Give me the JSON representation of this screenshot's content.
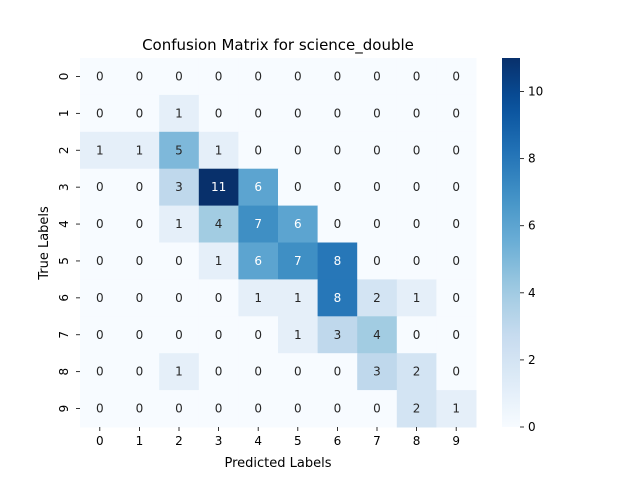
{
  "chart_data": {
    "type": "heatmap",
    "title": "Confusion Matrix for science_double",
    "xlabel": "Predicted Labels",
    "ylabel": "True Labels",
    "x_categories": [
      "0",
      "1",
      "2",
      "3",
      "4",
      "5",
      "6",
      "7",
      "8",
      "9"
    ],
    "y_categories": [
      "0",
      "1",
      "2",
      "3",
      "4",
      "5",
      "6",
      "7",
      "8",
      "9"
    ],
    "values": [
      [
        0,
        0,
        0,
        0,
        0,
        0,
        0,
        0,
        0,
        0
      ],
      [
        0,
        0,
        1,
        0,
        0,
        0,
        0,
        0,
        0,
        0
      ],
      [
        1,
        1,
        5,
        1,
        0,
        0,
        0,
        0,
        0,
        0
      ],
      [
        0,
        0,
        3,
        11,
        6,
        0,
        0,
        0,
        0,
        0
      ],
      [
        0,
        0,
        1,
        4,
        7,
        6,
        0,
        0,
        0,
        0
      ],
      [
        0,
        0,
        0,
        1,
        6,
        7,
        8,
        0,
        0,
        0
      ],
      [
        0,
        0,
        0,
        0,
        1,
        1,
        8,
        2,
        1,
        0
      ],
      [
        0,
        0,
        0,
        0,
        0,
        1,
        3,
        4,
        0,
        0
      ],
      [
        0,
        0,
        1,
        0,
        0,
        0,
        0,
        3,
        2,
        0
      ],
      [
        0,
        0,
        0,
        0,
        0,
        0,
        0,
        0,
        2,
        1
      ]
    ],
    "colorbar": {
      "min": 0,
      "max": 11,
      "ticks": [
        "0",
        "2",
        "4",
        "6",
        "8",
        "10"
      ],
      "colormap": "Blues"
    }
  }
}
